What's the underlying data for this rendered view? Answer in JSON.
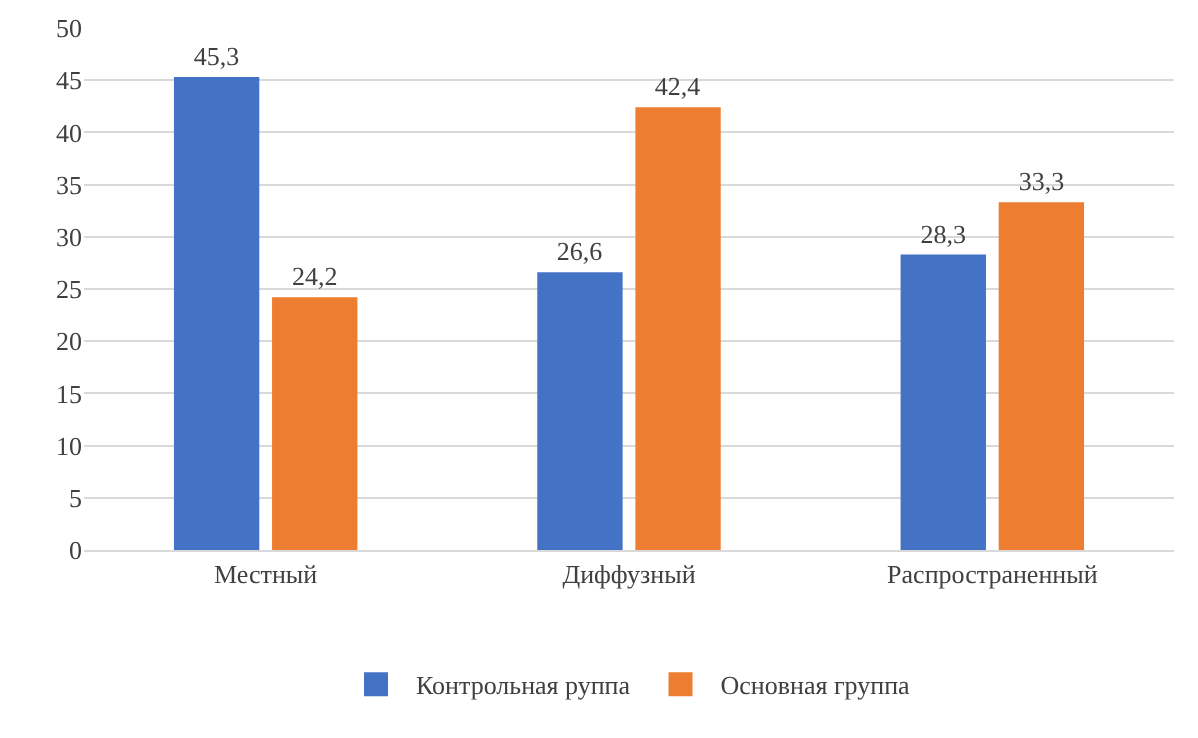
{
  "chart_data": {
    "type": "bar",
    "categories": [
      "Местный",
      "Диффузный",
      "Распространенный"
    ],
    "series": [
      {
        "name": "Контрольная руппа",
        "color": "#4472c4",
        "values": [
          45.3,
          26.6,
          28.3
        ],
        "value_labels": [
          "45,3",
          "26,6",
          "28,3"
        ]
      },
      {
        "name": "Основная группа",
        "color": "#ed7d31",
        "values": [
          24.2,
          42.4,
          33.3
        ],
        "value_labels": [
          "24,2",
          "42,4",
          "33,3"
        ]
      }
    ],
    "ylim": [
      0,
      50
    ],
    "yticks": [
      0,
      5,
      10,
      15,
      20,
      25,
      30,
      35,
      40,
      45,
      50
    ],
    "grid": "y",
    "legend": "bottom"
  }
}
